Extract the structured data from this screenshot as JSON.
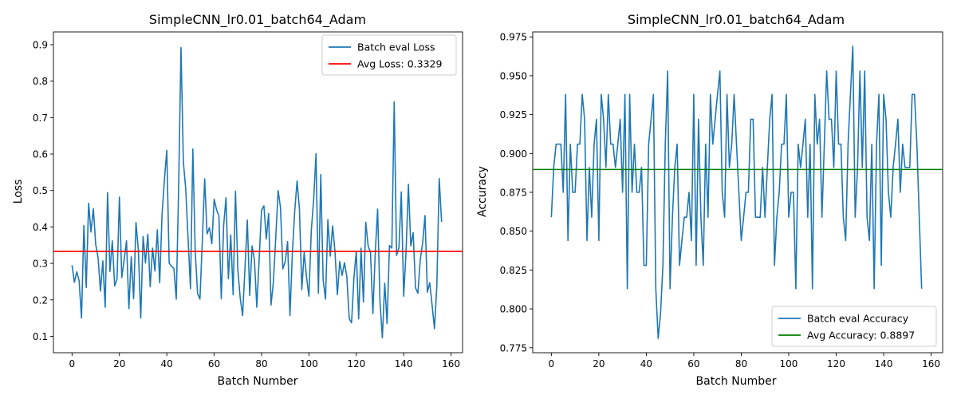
{
  "chart_data": [
    {
      "type": "line",
      "title": "SimpleCNN_lr0.01_batch64_Adam",
      "xlabel": "Batch Number",
      "ylabel": "Loss",
      "xlim": [
        -7.85,
        164.85
      ],
      "ylim": [
        0.055,
        0.935
      ],
      "xticks": [
        0,
        20,
        40,
        60,
        80,
        100,
        120,
        140,
        160
      ],
      "xtick_labels": [
        "0",
        "20",
        "40",
        "60",
        "80",
        "100",
        "120",
        "140",
        "160"
      ],
      "yticks": [
        0.1,
        0.2,
        0.3,
        0.4,
        0.5,
        0.6,
        0.7,
        0.8,
        0.9
      ],
      "ytick_labels": [
        "0.1",
        "0.2",
        "0.3",
        "0.4",
        "0.5",
        "0.6",
        "0.7",
        "0.8",
        "0.9"
      ],
      "grid": false,
      "legend_position": "top-right",
      "series": [
        {
          "name": "Batch eval Loss",
          "color": "#1f77b4",
          "values": [
            0.295,
            0.248,
            0.277,
            0.252,
            0.15,
            0.404,
            0.234,
            0.465,
            0.386,
            0.45,
            0.352,
            0.316,
            0.224,
            0.307,
            0.18,
            0.494,
            0.278,
            0.362,
            0.238,
            0.257,
            0.482,
            0.261,
            0.31,
            0.362,
            0.176,
            0.318,
            0.203,
            0.412,
            0.337,
            0.15,
            0.374,
            0.301,
            0.38,
            0.236,
            0.342,
            0.279,
            0.392,
            0.247,
            0.434,
            0.53,
            0.61,
            0.301,
            0.292,
            0.286,
            0.202,
            0.508,
            0.892,
            0.578,
            0.504,
            0.367,
            0.231,
            0.614,
            0.334,
            0.217,
            0.202,
            0.361,
            0.532,
            0.381,
            0.398,
            0.354,
            0.476,
            0.447,
            0.431,
            0.203,
            0.404,
            0.48,
            0.258,
            0.378,
            0.214,
            0.498,
            0.282,
            0.205,
            0.157,
            0.286,
            0.419,
            0.212,
            0.348,
            0.309,
            0.18,
            0.313,
            0.446,
            0.458,
            0.367,
            0.437,
            0.186,
            0.249,
            0.371,
            0.5,
            0.453,
            0.285,
            0.305,
            0.36,
            0.157,
            0.327,
            0.443,
            0.526,
            0.449,
            0.228,
            0.33,
            0.262,
            0.21,
            0.39,
            0.475,
            0.601,
            0.218,
            0.544,
            0.255,
            0.202,
            0.42,
            0.32,
            0.403,
            0.333,
            0.214,
            0.305,
            0.267,
            0.302,
            0.264,
            0.149,
            0.137,
            0.26,
            0.333,
            0.148,
            0.342,
            0.194,
            0.413,
            0.348,
            0.33,
            0.162,
            0.33,
            0.449,
            0.195,
            0.096,
            0.246,
            0.135,
            0.349,
            0.342,
            0.743,
            0.322,
            0.343,
            0.496,
            0.21,
            0.332,
            0.517,
            0.348,
            0.384,
            0.233,
            0.218,
            0.31,
            0.356,
            0.431,
            0.221,
            0.247,
            0.185,
            0.121,
            0.239,
            0.533,
            0.414
          ]
        }
      ],
      "reference_line": {
        "label": "Avg Loss: 0.3329",
        "value": 0.3329,
        "color": "#ff0000"
      }
    },
    {
      "type": "line",
      "title": "SimpleCNN_lr0.01_batch64_Adam",
      "xlabel": "Batch Number",
      "ylabel": "Accuracy",
      "xlim": [
        -7.85,
        164.85
      ],
      "ylim": [
        0.7718,
        0.9782
      ],
      "xticks": [
        0,
        20,
        40,
        60,
        80,
        100,
        120,
        140,
        160
      ],
      "xtick_labels": [
        "0",
        "20",
        "40",
        "60",
        "80",
        "100",
        "120",
        "140",
        "160"
      ],
      "yticks": [
        0.775,
        0.8,
        0.825,
        0.85,
        0.875,
        0.9,
        0.925,
        0.95,
        0.975
      ],
      "ytick_labels": [
        "0.775",
        "0.800",
        "0.825",
        "0.850",
        "0.875",
        "0.900",
        "0.925",
        "0.950",
        "0.975"
      ],
      "grid": false,
      "legend_position": "bottom-right",
      "series": [
        {
          "name": "Batch eval Accuracy",
          "color": "#1f77b4",
          "values": [
            0.859,
            0.891,
            0.906,
            0.906,
            0.906,
            0.875,
            0.938,
            0.844,
            0.906,
            0.875,
            0.875,
            0.906,
            0.906,
            0.938,
            0.922,
            0.844,
            0.891,
            0.859,
            0.906,
            0.922,
            0.844,
            0.938,
            0.922,
            0.891,
            0.938,
            0.906,
            0.906,
            0.891,
            0.906,
            0.922,
            0.875,
            0.938,
            0.813,
            0.938,
            0.875,
            0.906,
            0.875,
            0.875,
            0.891,
            0.828,
            0.828,
            0.906,
            0.922,
            0.938,
            0.813,
            0.781,
            0.797,
            0.828,
            0.906,
            0.953,
            0.813,
            0.859,
            0.891,
            0.906,
            0.828,
            0.844,
            0.859,
            0.859,
            0.875,
            0.844,
            0.938,
            0.828,
            0.922,
            0.859,
            0.828,
            0.906,
            0.859,
            0.938,
            0.906,
            0.922,
            0.938,
            0.953,
            0.875,
            0.859,
            0.938,
            0.891,
            0.906,
            0.938,
            0.906,
            0.875,
            0.844,
            0.859,
            0.875,
            0.875,
            0.922,
            0.922,
            0.859,
            0.859,
            0.859,
            0.891,
            0.859,
            0.891,
            0.922,
            0.938,
            0.828,
            0.859,
            0.875,
            0.906,
            0.906,
            0.938,
            0.859,
            0.875,
            0.875,
            0.813,
            0.906,
            0.891,
            0.906,
            0.922,
            0.859,
            0.906,
            0.813,
            0.938,
            0.906,
            0.922,
            0.859,
            0.906,
            0.953,
            0.922,
            0.922,
            0.891,
            0.953,
            0.906,
            0.906,
            0.859,
            0.844,
            0.906,
            0.938,
            0.969,
            0.859,
            0.891,
            0.953,
            0.891,
            0.953,
            0.859,
            0.844,
            0.906,
            0.813,
            0.906,
            0.938,
            0.828,
            0.938,
            0.922,
            0.875,
            0.859,
            0.891,
            0.906,
            0.922,
            0.875,
            0.906,
            0.891,
            0.891,
            0.891,
            0.938,
            0.938,
            0.906,
            0.859,
            0.813
          ]
        }
      ],
      "reference_line": {
        "label": "Avg Accuracy: 0.8897",
        "value": 0.8897,
        "color": "#008000"
      }
    }
  ]
}
